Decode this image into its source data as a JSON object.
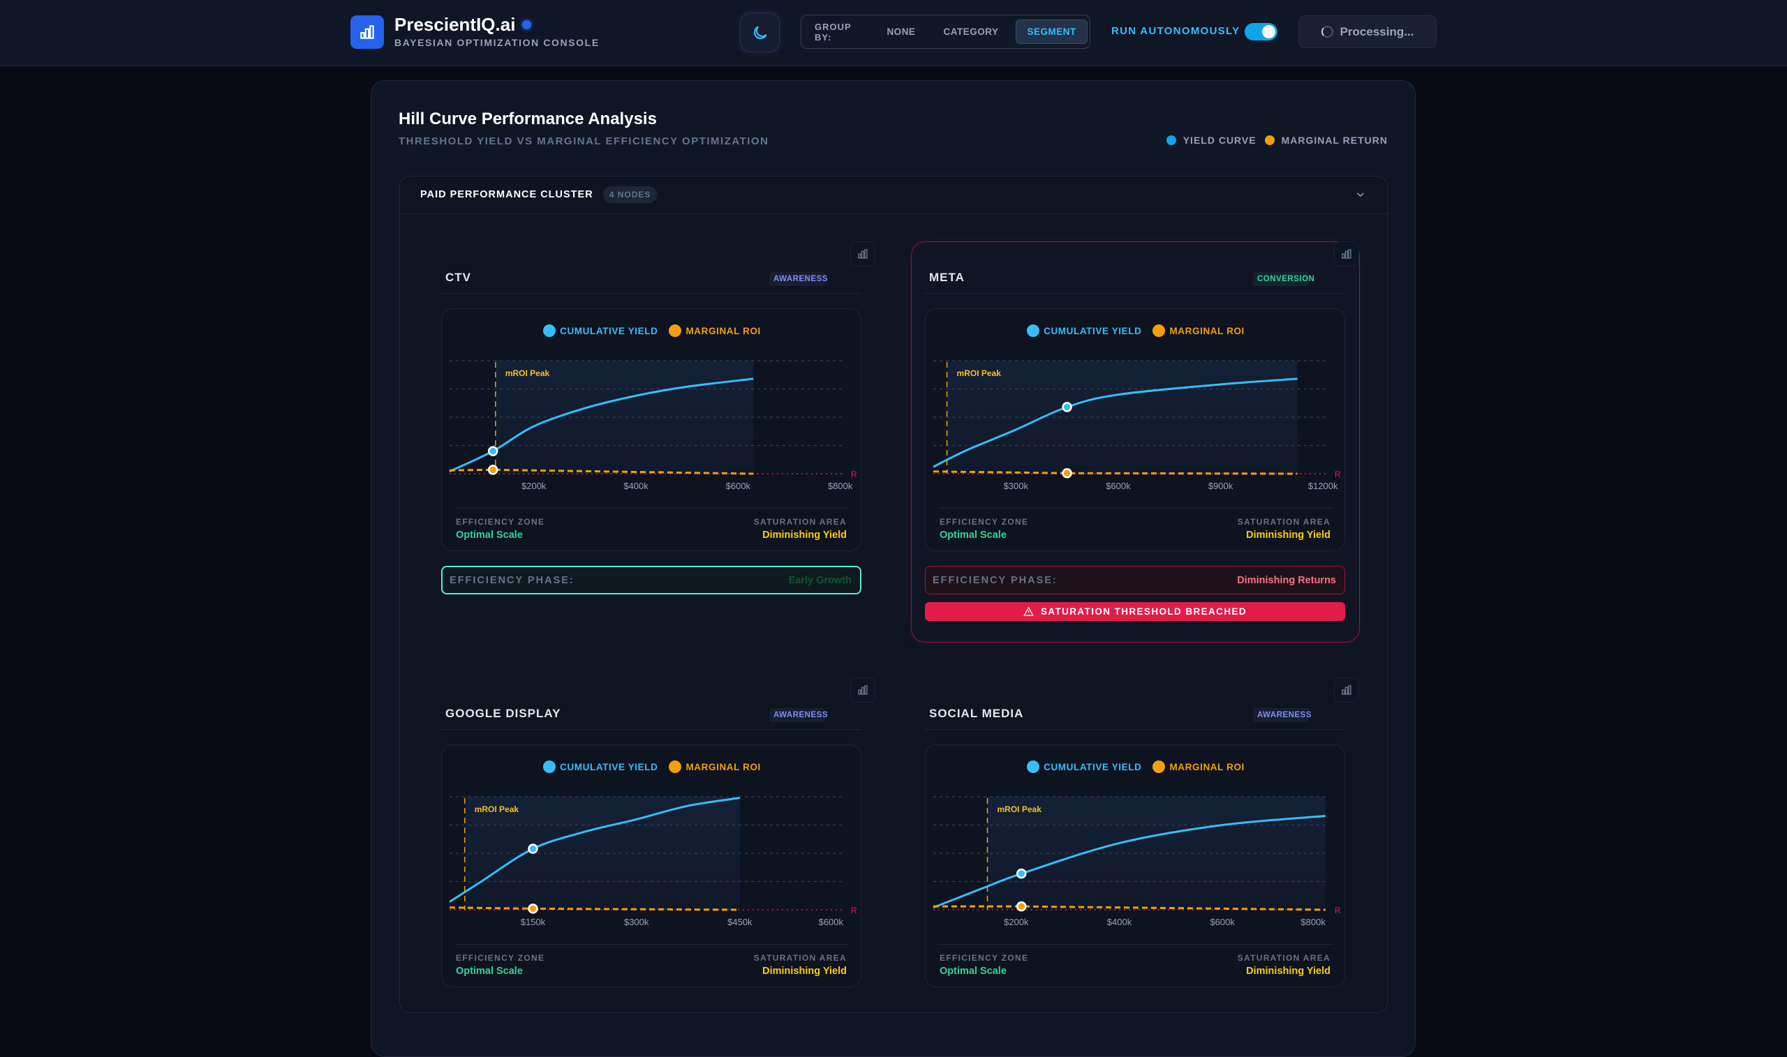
{
  "header": {
    "brand": "PrescientIQ.ai",
    "subtitle": "BAYESIAN OPTIMIZATION CONSOLE",
    "theme_icon": "moon-icon",
    "group_by": {
      "label": "GROUP BY:",
      "options": [
        "NONE",
        "CATEGORY",
        "SEGMENT"
      ],
      "selected": "SEGMENT"
    },
    "run_autonomously": {
      "label": "RUN AUTONOMOUSLY",
      "enabled": true
    },
    "status": "Processing..."
  },
  "panel": {
    "title": "Hill Curve Performance Analysis",
    "subtitle": "THRESHOLD YIELD VS MARGINAL EFFICIENCY OPTIMIZATION",
    "legend": [
      {
        "label": "YIELD CURVE",
        "color": "#0ea5e9"
      },
      {
        "label": "MARGINAL RETURN",
        "color": "#f59e0b"
      }
    ],
    "cluster": {
      "title": "PAID PERFORMANCE CLUSTER",
      "badge": "4 NODES"
    }
  },
  "colors": {
    "yield": "#38bdf8",
    "marginal": "#f59e0b",
    "good": "#34d399",
    "warn": "#facc15",
    "danger": "#e11d48"
  },
  "chart_legend": {
    "yield": "CUMULATIVE YIELD",
    "marginal": "MARGINAL ROI"
  },
  "footer_labels": {
    "zone": "EFFICIENCY ZONE",
    "zone_value": "Optimal Scale",
    "saturation": "SATURATION AREA",
    "saturation_value": "Diminishing Yield"
  },
  "phase_label": "EFFICIENCY PHASE:",
  "chart_data": [
    {
      "type": "line",
      "channel": "CTV",
      "badge": "AWARENESS",
      "badge_color": "#818cf8",
      "x_domain": [
        35000,
        810000
      ],
      "x_ticks": [
        200000,
        400000,
        600000,
        800000
      ],
      "x_tick_labels": [
        "$200k",
        "$400k",
        "$600k",
        "$800k"
      ],
      "annotation": "mROI Peak",
      "mroi_peak_spend": 125000,
      "current_spend": 120000,
      "reference_label": "R",
      "yield_curve": [
        [
          35000,
          0.02
        ],
        [
          120000,
          0.2
        ],
        [
          200000,
          0.42
        ],
        [
          300000,
          0.58
        ],
        [
          400000,
          0.69
        ],
        [
          500000,
          0.77
        ],
        [
          630000,
          0.84
        ]
      ],
      "marginal_roi": [
        [
          35000,
          0.03
        ],
        [
          120000,
          0.035
        ],
        [
          630000,
          0.0
        ]
      ],
      "phase": "Early Growth",
      "phase_color": "#14532d",
      "phase_border": "#5eead4",
      "alert": null
    },
    {
      "type": "line",
      "channel": "META",
      "badge": "CONVERSION",
      "badge_color": "#34d399",
      "x_domain": [
        58000,
        1218000
      ],
      "x_ticks": [
        300000,
        600000,
        900000,
        1200000
      ],
      "x_tick_labels": [
        "$300k",
        "$600k",
        "$900k",
        "$1200k"
      ],
      "annotation": "mROI Peak",
      "mroi_peak_spend": 98000,
      "current_spend": 450000,
      "reference_label": "R",
      "yield_curve": [
        [
          58000,
          0.06
        ],
        [
          150000,
          0.2
        ],
        [
          300000,
          0.39
        ],
        [
          450000,
          0.59
        ],
        [
          600000,
          0.7
        ],
        [
          900000,
          0.79
        ],
        [
          1125000,
          0.84
        ]
      ],
      "marginal_roi": [
        [
          58000,
          0.02
        ],
        [
          450000,
          0.005
        ],
        [
          1125000,
          0.0
        ]
      ],
      "phase": "Diminishing Returns",
      "phase_color": "#fb7185",
      "phase_border": "#9f1239",
      "alert": "SATURATION THRESHOLD BREACHED"
    },
    {
      "type": "line",
      "channel": "GOOGLE DISPLAY",
      "badge": "AWARENESS",
      "badge_color": "#818cf8",
      "x_domain": [
        29000,
        603000
      ],
      "x_ticks": [
        150000,
        300000,
        450000,
        600000
      ],
      "x_tick_labels": [
        "$150k",
        "$300k",
        "$450k",
        "$600k"
      ],
      "annotation": "mROI Peak",
      "mroi_peak_spend": 51000,
      "current_spend": 150000,
      "reference_label": "R",
      "yield_curve": [
        [
          29000,
          0.07
        ],
        [
          75000,
          0.25
        ],
        [
          150000,
          0.54
        ],
        [
          225000,
          0.69
        ],
        [
          300000,
          0.8
        ],
        [
          375000,
          0.92
        ],
        [
          450000,
          0.99
        ]
      ],
      "marginal_roi": [
        [
          29000,
          0.02
        ],
        [
          150000,
          0.01
        ],
        [
          450000,
          0.0
        ]
      ],
      "phase": null,
      "alert": null
    },
    {
      "type": "line",
      "channel": "SOCIAL MEDIA",
      "badge": "AWARENESS",
      "badge_color": "#818cf8",
      "x_domain": [
        39000,
        807000
      ],
      "x_ticks": [
        200000,
        400000,
        600000,
        800000
      ],
      "x_tick_labels": [
        "$200k",
        "$400k",
        "$600k",
        "$800k"
      ],
      "annotation": "mROI Peak",
      "mroi_peak_spend": 144000,
      "current_spend": 210000,
      "reference_label": "R",
      "yield_curve": [
        [
          39000,
          0.02
        ],
        [
          140000,
          0.2
        ],
        [
          210000,
          0.32
        ],
        [
          400000,
          0.59
        ],
        [
          600000,
          0.75
        ],
        [
          800000,
          0.83
        ]
      ],
      "marginal_roi": [
        [
          39000,
          0.03
        ],
        [
          210000,
          0.03
        ],
        [
          800000,
          0.0
        ]
      ],
      "phase": null,
      "alert": null
    }
  ]
}
